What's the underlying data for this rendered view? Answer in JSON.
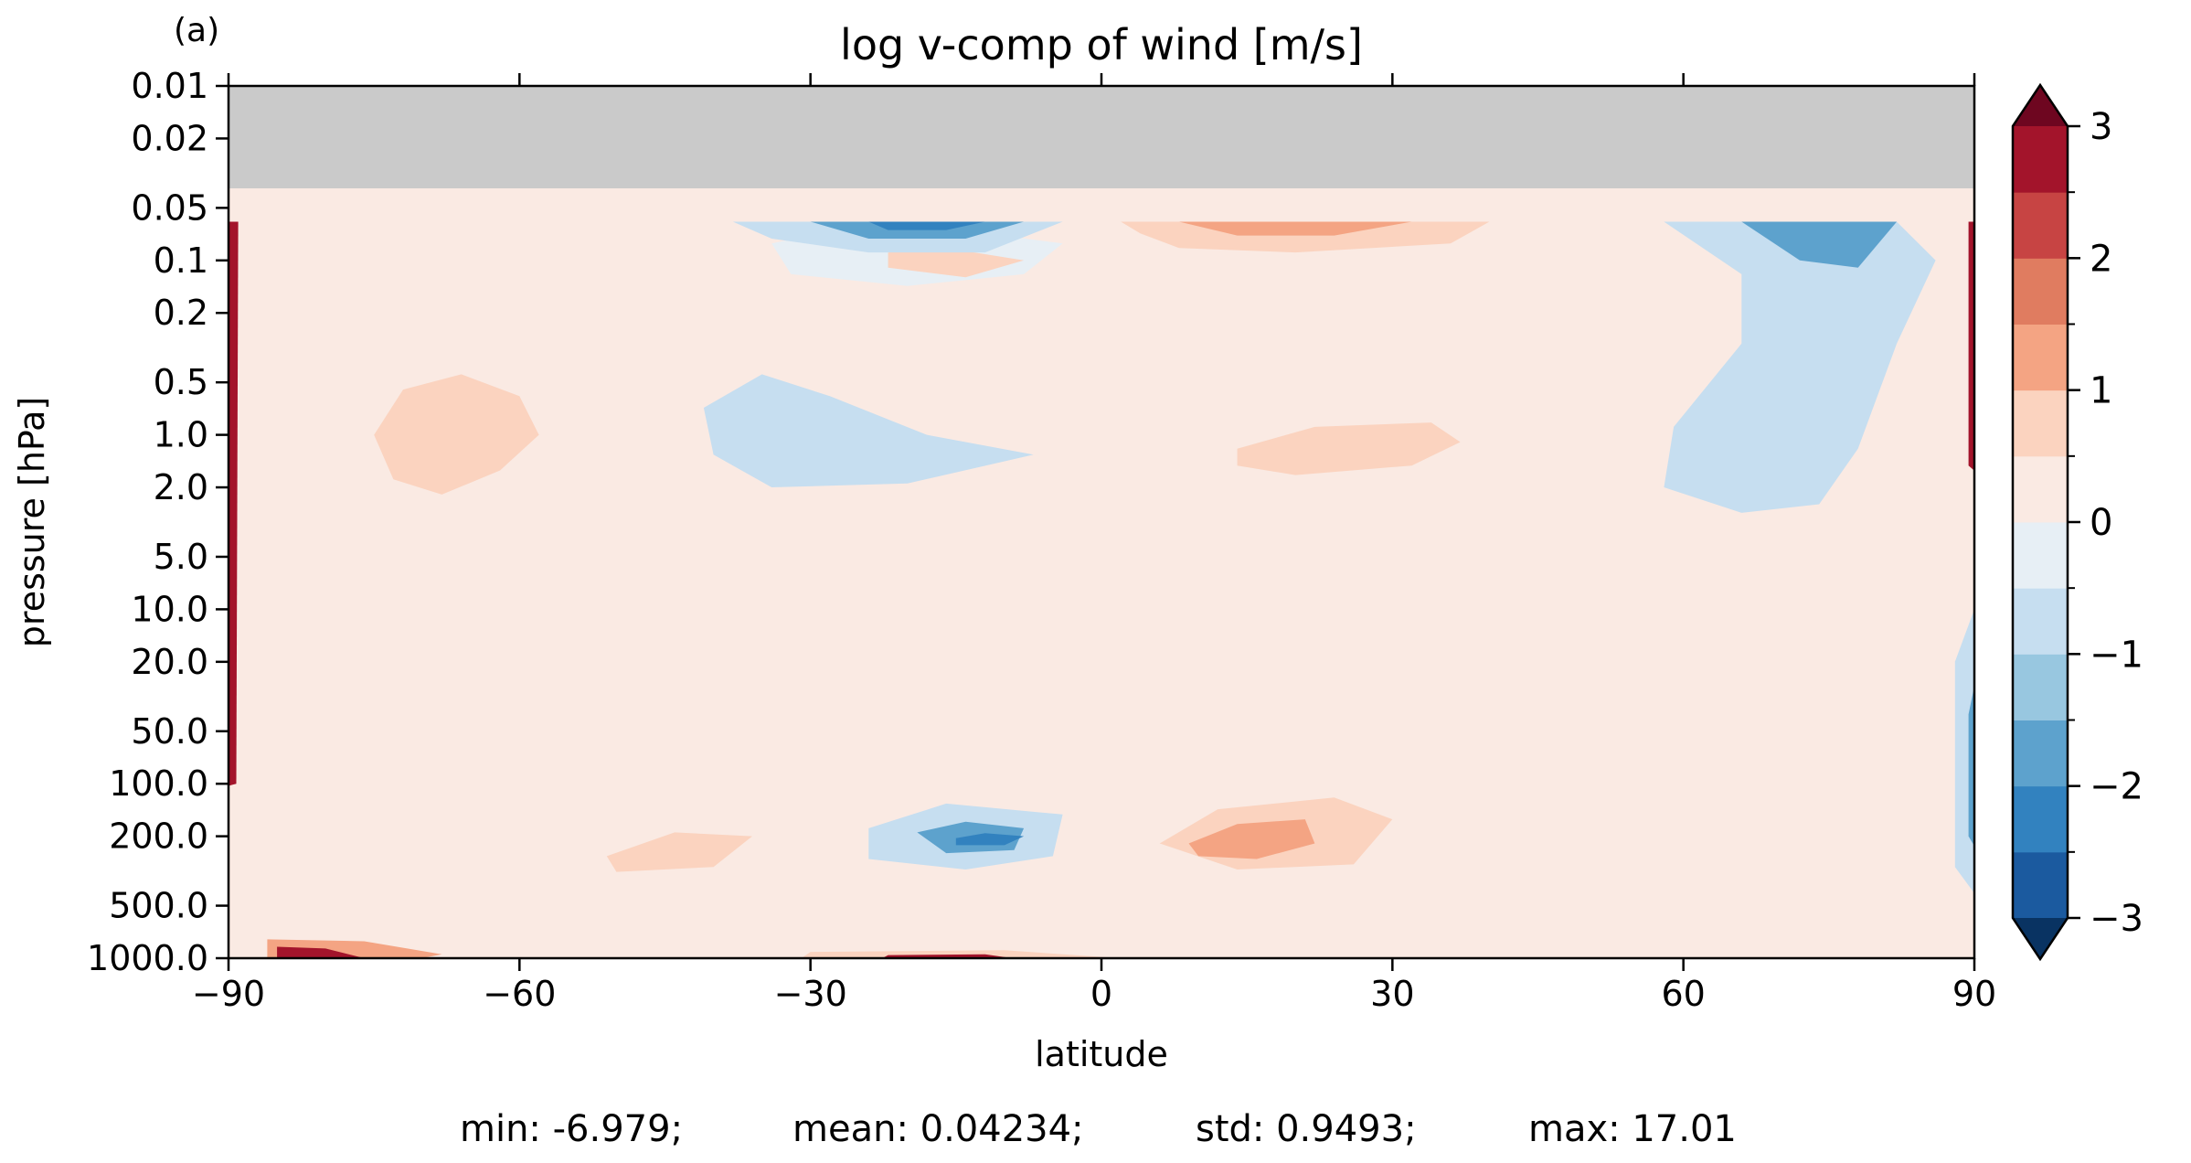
{
  "chart_data": {
    "type": "heatmap",
    "panel_label": "(a)",
    "title": "log v-comp of wind [m/s]",
    "xlabel": "latitude",
    "ylabel": "pressure [hPa]",
    "x_ticks": [
      -90,
      -60,
      -30,
      0,
      30,
      60,
      90
    ],
    "x_tick_labels": [
      "−90",
      "−60",
      "−30",
      "0",
      "30",
      "60",
      "90"
    ],
    "xlim": [
      -90,
      90
    ],
    "y_scale": "log",
    "y_inverted": true,
    "ylim": [
      1000.0,
      0.01
    ],
    "y_ticks": [
      0.01,
      0.02,
      0.05,
      0.1,
      0.2,
      0.5,
      1.0,
      2.0,
      5.0,
      10.0,
      20.0,
      50.0,
      100.0,
      200.0,
      500.0,
      1000.0
    ],
    "y_tick_labels": [
      "0.01",
      "0.02",
      "0.05",
      "0.1",
      "0.2",
      "0.5",
      "1.0",
      "2.0",
      "5.0",
      "10.0",
      "20.0",
      "50.0",
      "100.0",
      "200.0",
      "500.0",
      "1000.0"
    ],
    "data_top_pressure": 0.06,
    "missing_color": "#cacaca",
    "colorbar": {
      "levels": [
        -3,
        -2.5,
        -2,
        -1.5,
        -1,
        -0.5,
        0,
        0.5,
        1,
        1.5,
        2,
        2.5,
        3
      ],
      "colors": [
        "#1b5a9f",
        "#3282bf",
        "#5da2cd",
        "#98c7e0",
        "#c6def0",
        "#e7eff5",
        "#faeae3",
        "#fbd3bf",
        "#f4a483",
        "#e07c60",
        "#c74443",
        "#a3142b"
      ],
      "under_color": "#093362",
      "over_color": "#6e0620",
      "tick_values": [
        3,
        2,
        1,
        0,
        -1,
        -2,
        -3
      ],
      "tick_labels": [
        "3",
        "2",
        "1",
        "0",
        "−1",
        "−2",
        "−3"
      ],
      "extend": "both"
    },
    "regions": [
      {
        "level": 1,
        "points": [
          [
            -75,
            1.0
          ],
          [
            -72,
            0.55
          ],
          [
            -66,
            0.45
          ],
          [
            -60,
            0.6
          ],
          [
            -58,
            1.0
          ],
          [
            -62,
            1.6
          ],
          [
            -68,
            2.2
          ],
          [
            -73,
            1.8
          ]
        ]
      },
      {
        "level": -1,
        "points": [
          [
            -41,
            0.7
          ],
          [
            -35,
            0.45
          ],
          [
            -28,
            0.6
          ],
          [
            -18,
            1.0
          ],
          [
            -7,
            1.3
          ],
          [
            -20,
            1.9
          ],
          [
            -34,
            2.0
          ],
          [
            -40,
            1.3
          ]
        ]
      },
      {
        "level": 0,
        "points": [
          [
            -34,
            0.08
          ],
          [
            -26,
            0.065
          ],
          [
            -12,
            0.07
          ],
          [
            -4,
            0.08
          ],
          [
            -8,
            0.12
          ],
          [
            -20,
            0.14
          ],
          [
            -32,
            0.12
          ]
        ]
      },
      {
        "level": 1,
        "points": [
          [
            -22,
            0.09
          ],
          [
            -16,
            0.085
          ],
          [
            -8,
            0.1
          ],
          [
            -14,
            0.125
          ],
          [
            -22,
            0.11
          ]
        ]
      },
      {
        "level": -1,
        "points": [
          [
            -38,
            0.06
          ],
          [
            -4,
            0.06
          ],
          [
            -12,
            0.09
          ],
          [
            -24,
            0.09
          ],
          [
            -34,
            0.075
          ]
        ]
      },
      {
        "level": -2,
        "points": [
          [
            -30,
            0.06
          ],
          [
            -8,
            0.06
          ],
          [
            -14,
            0.075
          ],
          [
            -24,
            0.075
          ]
        ]
      },
      {
        "level": -3,
        "points": [
          [
            -24,
            0.06
          ],
          [
            -12,
            0.06
          ],
          [
            -16,
            0.067
          ],
          [
            -22,
            0.067
          ]
        ]
      },
      {
        "level": 1,
        "points": [
          [
            2,
            0.06
          ],
          [
            40,
            0.06
          ],
          [
            36,
            0.08
          ],
          [
            20,
            0.09
          ],
          [
            8,
            0.085
          ],
          [
            4,
            0.07
          ]
        ]
      },
      {
        "level": 2,
        "points": [
          [
            8,
            0.06
          ],
          [
            32,
            0.06
          ],
          [
            24,
            0.072
          ],
          [
            14,
            0.072
          ]
        ]
      },
      {
        "level": 1,
        "points": [
          [
            14,
            1.2
          ],
          [
            22,
            0.9
          ],
          [
            34,
            0.85
          ],
          [
            37,
            1.1
          ],
          [
            32,
            1.5
          ],
          [
            20,
            1.7
          ],
          [
            14,
            1.5
          ]
        ]
      },
      {
        "level": -1,
        "points": [
          [
            58,
            0.06
          ],
          [
            82,
            0.06
          ],
          [
            86,
            0.1
          ],
          [
            82,
            0.3
          ],
          [
            78,
            1.2
          ],
          [
            74,
            2.5
          ],
          [
            66,
            2.8
          ],
          [
            58,
            2.0
          ],
          [
            59,
            0.9
          ],
          [
            66,
            0.3
          ],
          [
            66,
            0.12
          ]
        ]
      },
      {
        "level": -2,
        "points": [
          [
            66,
            0.06
          ],
          [
            82,
            0.06
          ],
          [
            78,
            0.11
          ],
          [
            72,
            0.1
          ]
        ]
      },
      {
        "level": -1,
        "points": [
          [
            -24,
            180
          ],
          [
            -16,
            130
          ],
          [
            -4,
            150
          ],
          [
            -5,
            260
          ],
          [
            -14,
            310
          ],
          [
            -24,
            270
          ]
        ]
      },
      {
        "level": -2,
        "points": [
          [
            -19,
            190
          ],
          [
            -14,
            165
          ],
          [
            -8,
            180
          ],
          [
            -9,
            240
          ],
          [
            -16,
            250
          ]
        ]
      },
      {
        "level": -3,
        "points": [
          [
            -15,
            205
          ],
          [
            -12,
            192
          ],
          [
            -8,
            200
          ],
          [
            -10,
            225
          ],
          [
            -15,
            225
          ]
        ]
      },
      {
        "level": 1,
        "points": [
          [
            6,
            220
          ],
          [
            12,
            140
          ],
          [
            24,
            120
          ],
          [
            30,
            160
          ],
          [
            26,
            290
          ],
          [
            14,
            310
          ]
        ]
      },
      {
        "level": 2,
        "points": [
          [
            9,
            220
          ],
          [
            14,
            170
          ],
          [
            21,
            160
          ],
          [
            22,
            220
          ],
          [
            16,
            270
          ],
          [
            10,
            260
          ]
        ]
      },
      {
        "level": 1,
        "points": [
          [
            -51,
            260
          ],
          [
            -44,
            190
          ],
          [
            -36,
            200
          ],
          [
            -40,
            300
          ],
          [
            -50,
            320
          ]
        ]
      },
      {
        "level": -1,
        "points": [
          [
            92,
            5
          ],
          [
            88,
            20
          ],
          [
            88,
            300
          ],
          [
            92,
            600
          ]
        ]
      },
      {
        "level": -2,
        "points": [
          [
            92,
            8
          ],
          [
            89.4,
            40
          ],
          [
            89.4,
            200
          ],
          [
            92,
            350
          ]
        ]
      },
      {
        "level": 2,
        "points": [
          [
            -86,
            780
          ],
          [
            -76,
            800
          ],
          [
            -68,
            950
          ],
          [
            -74,
            1100
          ],
          [
            -86,
            1100
          ]
        ]
      },
      {
        "level": 3,
        "points": [
          [
            -85,
            860
          ],
          [
            -80,
            880
          ],
          [
            -76,
            1000
          ],
          [
            -85,
            1100
          ]
        ]
      },
      {
        "level": 1,
        "points": [
          [
            -30,
            920
          ],
          [
            -10,
            900
          ],
          [
            2,
            1000
          ],
          [
            0,
            1100
          ],
          [
            -32,
            1100
          ]
        ]
      },
      {
        "level": 3,
        "points": [
          [
            -22,
            960
          ],
          [
            -12,
            950
          ],
          [
            -4,
            1100
          ],
          [
            -24,
            1100
          ]
        ]
      },
      {
        "level": 3,
        "points": [
          [
            -92,
            0.06
          ],
          [
            -89,
            0.06
          ],
          [
            -89.2,
            100
          ],
          [
            -92,
            110
          ]
        ]
      },
      {
        "level": 3,
        "points": [
          [
            92,
            0.06
          ],
          [
            89.4,
            0.06
          ],
          [
            89.4,
            1.5
          ],
          [
            92,
            2
          ]
        ]
      }
    ]
  },
  "stats": {
    "min": "min: -6.979;",
    "mean": "mean: 0.04234;",
    "std": "std: 0.9493;",
    "max": "max: 17.01"
  }
}
